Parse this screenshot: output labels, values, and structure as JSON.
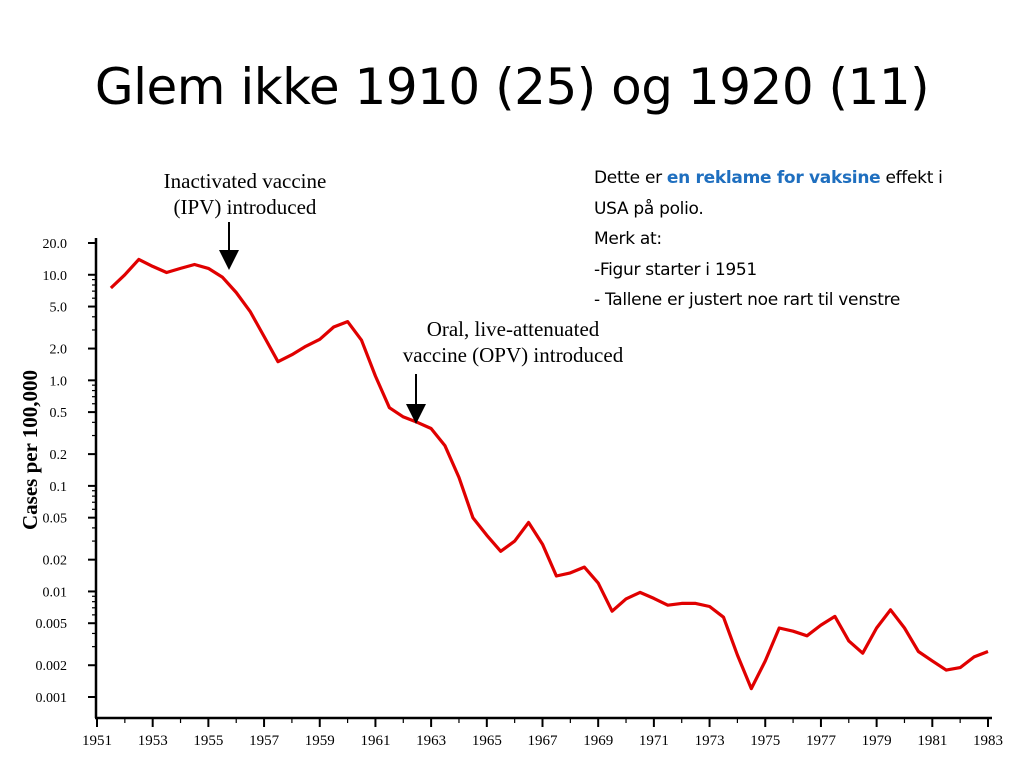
{
  "slide": {
    "title": "Glem ikke 1910 (25) og 1920 (11)"
  },
  "note": {
    "line1_pre": "Dette er ",
    "line1_highlight": "en reklame for vaksine",
    "line1_post": " effekt i",
    "line2": "USA på polio.",
    "line3": "Merk at:",
    "line4": "-Figur starter i 1951",
    "line5": "- Tallene er justert noe rart til venstre",
    "highlight_color": "#1f6fbf"
  },
  "chart_data": {
    "type": "line",
    "ylabel": "Cases per 100,000",
    "xlabel": "",
    "y_scale": "log",
    "y_ticks": [
      "20.0",
      "10.0",
      "5.0",
      "2.0",
      "1.0",
      "0.5",
      "0.2",
      "0.1",
      "0.05",
      "0.02",
      "0.01",
      "0.005",
      "0.002",
      "0.001"
    ],
    "y_tick_values": [
      20,
      10,
      5,
      2,
      1,
      0.5,
      0.2,
      0.1,
      0.05,
      0.02,
      0.01,
      0.005,
      0.002,
      0.001
    ],
    "x_ticks": [
      "1951",
      "1953",
      "1955",
      "1957",
      "1959",
      "1961",
      "1963",
      "1965",
      "1967",
      "1969",
      "1971",
      "1973",
      "1975",
      "1977",
      "1979",
      "1981",
      "1983"
    ],
    "xlim": [
      1951,
      1983
    ],
    "line_color": "#e00000",
    "series": [
      {
        "x": [
          1951.5,
          1952.0,
          1952.5,
          1953.0,
          1953.5,
          1954.0,
          1954.5,
          1955.0,
          1955.5,
          1956.0,
          1956.5,
          1957.0,
          1957.5,
          1958.0,
          1958.5,
          1959.0,
          1959.5,
          1960.0,
          1960.5,
          1961.0,
          1961.5,
          1962.0,
          1962.5,
          1963.0,
          1963.5,
          1964.0,
          1964.5,
          1965.0,
          1965.5,
          1966.0,
          1966.5,
          1967.0,
          1967.5,
          1968.0,
          1968.5,
          1969.0,
          1969.5,
          1970.0,
          1970.5,
          1971.0,
          1971.5,
          1972.0,
          1972.5,
          1973.0,
          1973.5,
          1974.0,
          1974.5,
          1975.0,
          1975.5,
          1976.0,
          1976.5,
          1977.0,
          1977.5,
          1978.0,
          1978.5,
          1979.0,
          1979.5,
          1980.0,
          1980.5,
          1981.0,
          1981.5,
          1982.0,
          1982.5,
          1983.0
        ],
        "values": [
          7.5,
          10.0,
          14.0,
          12.0,
          10.5,
          11.5,
          12.5,
          11.5,
          9.5,
          6.8,
          4.5,
          2.6,
          1.5,
          1.75,
          2.1,
          2.45,
          3.2,
          3.6,
          2.4,
          1.1,
          0.55,
          0.45,
          0.4,
          0.35,
          0.24,
          0.12,
          0.05,
          0.034,
          0.024,
          0.03,
          0.045,
          0.028,
          0.014,
          0.015,
          0.017,
          0.012,
          0.0065,
          0.0085,
          0.0098,
          0.0086,
          0.0074,
          0.0077,
          0.0077,
          0.0072,
          0.0057,
          0.0025,
          0.0012,
          0.0022,
          0.0045,
          0.0042,
          0.0038,
          0.0048,
          0.0058,
          0.0034,
          0.0026,
          0.0045,
          0.0067,
          0.0045,
          0.0027,
          0.0022,
          0.0018,
          0.0019,
          0.0024,
          0.0027
        ]
      }
    ],
    "annotations": [
      {
        "text_line1": "Inactivated vaccine",
        "text_line2": "(IPV) introduced",
        "x": 1955.8
      },
      {
        "text_line1": "Oral, live-attenuated",
        "text_line2": "vaccine (OPV) introduced",
        "x": 1962.5
      }
    ]
  }
}
